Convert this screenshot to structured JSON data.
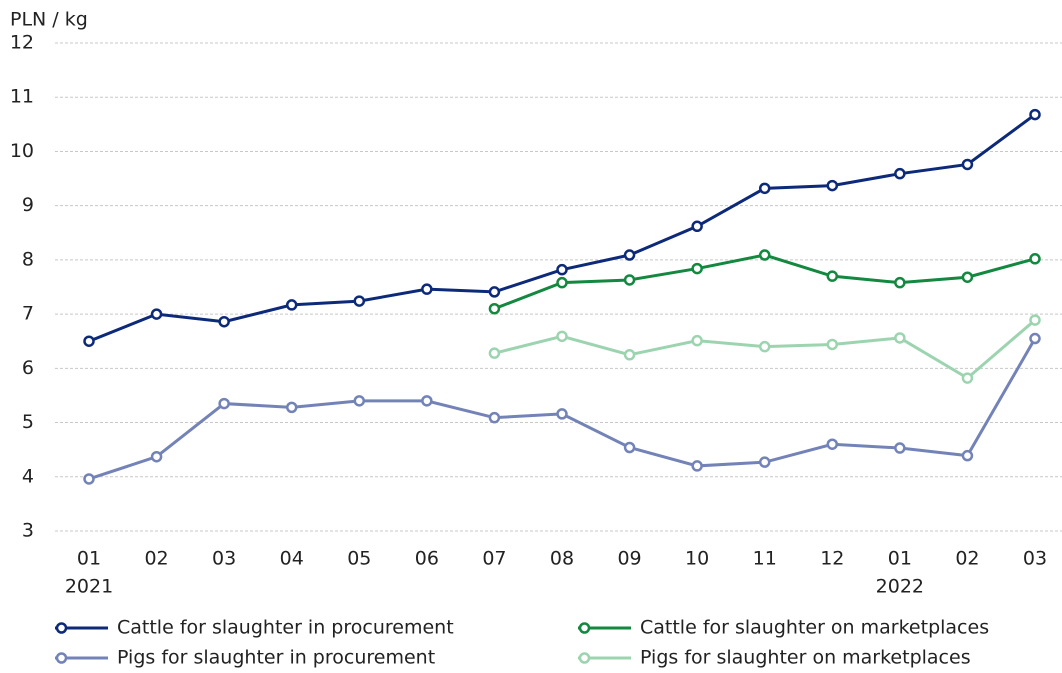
{
  "chart_data": {
    "type": "line",
    "y_axis_label": "PLN / kg",
    "categories": [
      "01",
      "02",
      "03",
      "04",
      "05",
      "06",
      "07",
      "08",
      "09",
      "10",
      "11",
      "12",
      "01",
      "02",
      "03"
    ],
    "year_labels": [
      "2021",
      null,
      null,
      null,
      null,
      null,
      null,
      null,
      null,
      null,
      null,
      null,
      "2022",
      null,
      null
    ],
    "series": [
      {
        "name": "Cattle for slaughter in procurement",
        "color": "#0d2a7a",
        "values": [
          6.5,
          7.0,
          6.86,
          7.17,
          7.24,
          7.46,
          7.41,
          7.82,
          8.09,
          8.62,
          9.32,
          9.37,
          9.59,
          9.76,
          10.68
        ]
      },
      {
        "name": "Cattle for slaughter on marketplaces",
        "color": "#13883f",
        "values": [
          null,
          null,
          null,
          null,
          null,
          null,
          7.1,
          7.58,
          7.63,
          7.84,
          8.09,
          7.7,
          7.58,
          7.68,
          8.02
        ]
      },
      {
        "name": "Pigs for slaughter in procurement",
        "color": "#7383b8",
        "values": [
          3.96,
          4.37,
          5.35,
          5.28,
          5.4,
          5.4,
          5.09,
          5.16,
          4.54,
          4.2,
          4.27,
          4.6,
          4.53,
          4.39,
          6.55
        ]
      },
      {
        "name": "Pigs for slaughter on marketplaces",
        "color": "#9dd4b0",
        "values": [
          null,
          null,
          null,
          null,
          null,
          null,
          6.28,
          6.59,
          6.25,
          6.51,
          6.4,
          6.44,
          6.56,
          5.82,
          6.89
        ]
      }
    ],
    "ylim": [
      3,
      12
    ],
    "yticks": [
      3,
      4,
      5,
      6,
      7,
      8,
      9,
      10,
      11,
      12
    ],
    "grid": true
  }
}
